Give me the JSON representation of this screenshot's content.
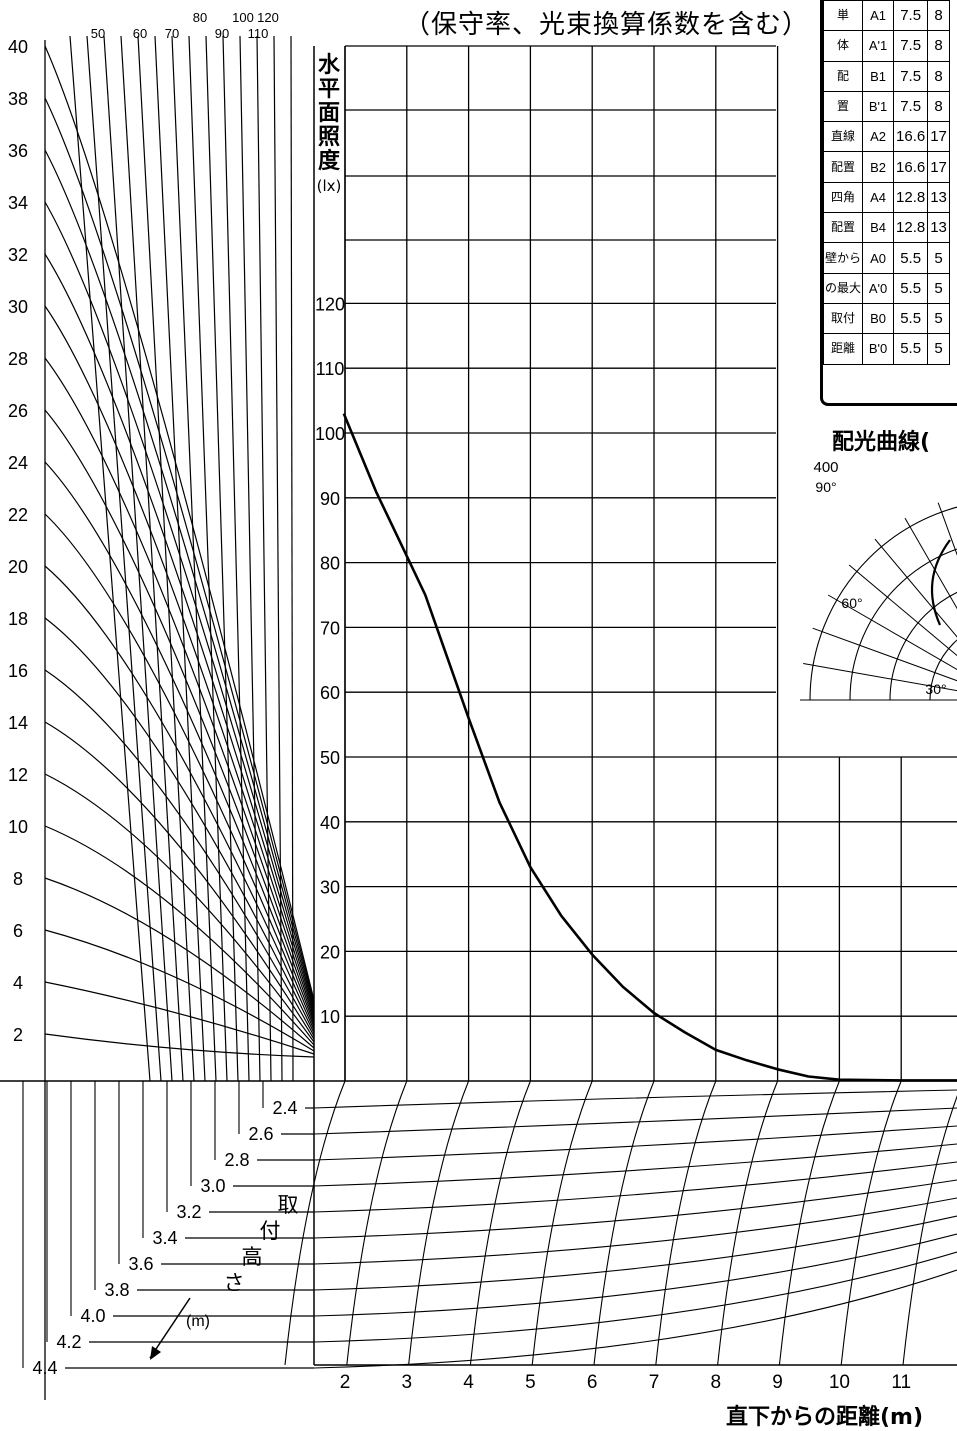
{
  "chart_data": {
    "type": "line",
    "title": "（保守率、光束換算係数を含む）",
    "xlabel": "直下からの距離(m)",
    "ylabel": "水平面照度(lx)",
    "x_ticks": [
      "2",
      "3",
      "4",
      "5",
      "6",
      "7",
      "8",
      "9",
      "10",
      "11"
    ],
    "y_ticks": [
      "10",
      "20",
      "30",
      "40",
      "50",
      "60",
      "70",
      "80",
      "90",
      "100",
      "110",
      "120"
    ],
    "x": [
      1.98,
      2.5,
      3,
      3.3,
      4,
      4.5,
      5,
      5.5,
      6,
      6.5,
      7,
      7.5,
      8,
      8.5,
      9,
      9.5,
      10,
      11,
      12
    ],
    "series": [
      {
        "values": [
          103,
          91,
          81,
          75,
          56,
          43,
          33,
          25.5,
          19.5,
          14.5,
          10.5,
          7.5,
          4.8,
          3.2,
          1.8,
          0.7,
          0.2,
          0.1,
          0.1
        ]
      }
    ],
    "ylim": [
      0,
      160
    ],
    "grid": true,
    "left_scale": {
      "ticks": [
        "40",
        "38",
        "36",
        "34",
        "32",
        "30",
        "28",
        "26",
        "24",
        "22",
        "20",
        "18",
        "16",
        "14",
        "12",
        "10",
        "8",
        "6",
        "4",
        "2"
      ],
      "top_labels_row1": [
        "80",
        "100",
        "120"
      ],
      "top_labels_row2": [
        "50",
        "60",
        "70",
        "90",
        "110"
      ]
    },
    "mount_height": {
      "label_chars": [
        "取",
        "付",
        "高",
        "さ"
      ],
      "unit": "(m)",
      "values": [
        "2.4",
        "2.6",
        "2.8",
        "3.0",
        "3.2",
        "3.4",
        "3.6",
        "3.8",
        "4.0",
        "4.2",
        "4.4"
      ]
    }
  },
  "config_table": {
    "rows": [
      {
        "group": "単",
        "code": "A1",
        "v1": "7.5",
        "v2": "8"
      },
      {
        "group": "体",
        "code": "A'1",
        "v1": "7.5",
        "v2": "8"
      },
      {
        "group": "配",
        "code": "B1",
        "v1": "7.5",
        "v2": "8"
      },
      {
        "group": "置",
        "code": "B'1",
        "v1": "7.5",
        "v2": "8"
      },
      {
        "group": "直線",
        "code": "A2",
        "v1": "16.6",
        "v2": "17"
      },
      {
        "group": "配置",
        "code": "B2",
        "v1": "16.6",
        "v2": "17"
      },
      {
        "group": "四角",
        "code": "A4",
        "v1": "12.8",
        "v2": "13"
      },
      {
        "group": "配置",
        "code": "B4",
        "v1": "12.8",
        "v2": "13"
      },
      {
        "group": "壁から",
        "code": "A0",
        "v1": "5.5",
        "v2": "5"
      },
      {
        "group": "の最大",
        "code": "A'0",
        "v1": "5.5",
        "v2": "5"
      },
      {
        "group": "取付",
        "code": "B0",
        "v1": "5.5",
        "v2": "5"
      },
      {
        "group": "距離",
        "code": "B'0",
        "v1": "5.5",
        "v2": "5"
      }
    ]
  },
  "polar": {
    "title": "配光曲線(",
    "scale_label": "400",
    "angles": [
      "90°",
      "60°",
      "30°"
    ]
  }
}
